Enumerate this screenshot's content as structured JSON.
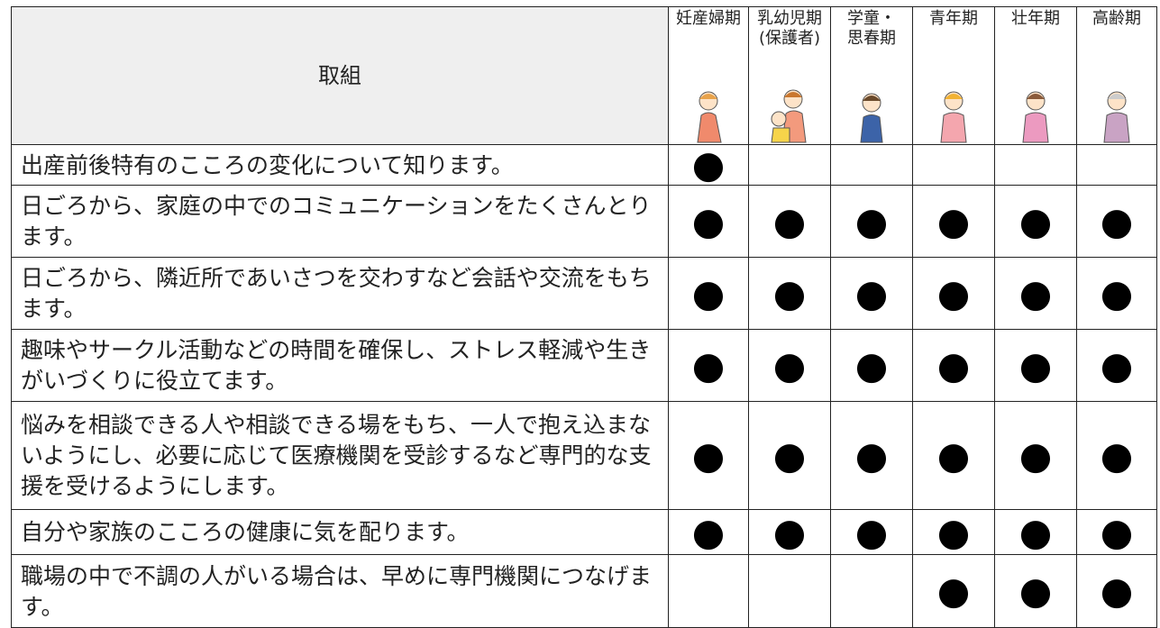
{
  "table": {
    "header": [
      "取組",
      "妊産婦期",
      "乳幼児期\n(保護者)",
      "学童・\n思春期",
      "青年期",
      "壮年期",
      "高齢期"
    ],
    "rows": [
      {
        "text": "出産前後特有のこころの変化について知ります。",
        "cells": [
          "●",
          null,
          null,
          null,
          null,
          null
        ]
      },
      {
        "text": "日ごろから、家庭の中でのコミュニケーションをたくさんとります。",
        "cells": [
          "●",
          "●",
          "●",
          "●",
          "●",
          "●"
        ]
      },
      {
        "text": "日ごろから、隣近所であいさつを交わすなど会話や交流をもちます。",
        "cells": [
          "●",
          "●",
          "●",
          "●",
          "●",
          "●"
        ]
      },
      {
        "text": "趣味やサークル活動などの時間を確保し、ストレス軽減や生きがいづくりに役立てます。",
        "cells": [
          "●",
          "●",
          "●",
          "●",
          "●",
          "●"
        ]
      },
      {
        "text": "悩みを相談できる人や相談できる場をもち、一人で抱え込まないようにし、必要に応じて医療機関を受診するなど専門的な支援を受けるようにします。",
        "cells": [
          "●",
          "●",
          "●",
          "●",
          "●",
          "●"
        ]
      },
      {
        "text": "自分や家族のこころの健康に気を配ります。",
        "cells": [
          "●",
          "●",
          "●",
          "●",
          "●",
          "●"
        ]
      },
      {
        "text": "職場の中で不調の人がいる場合は、早めに専門機関につなげます。",
        "cells": [
          null,
          null,
          null,
          "●",
          "●",
          "●"
        ]
      }
    ]
  }
}
